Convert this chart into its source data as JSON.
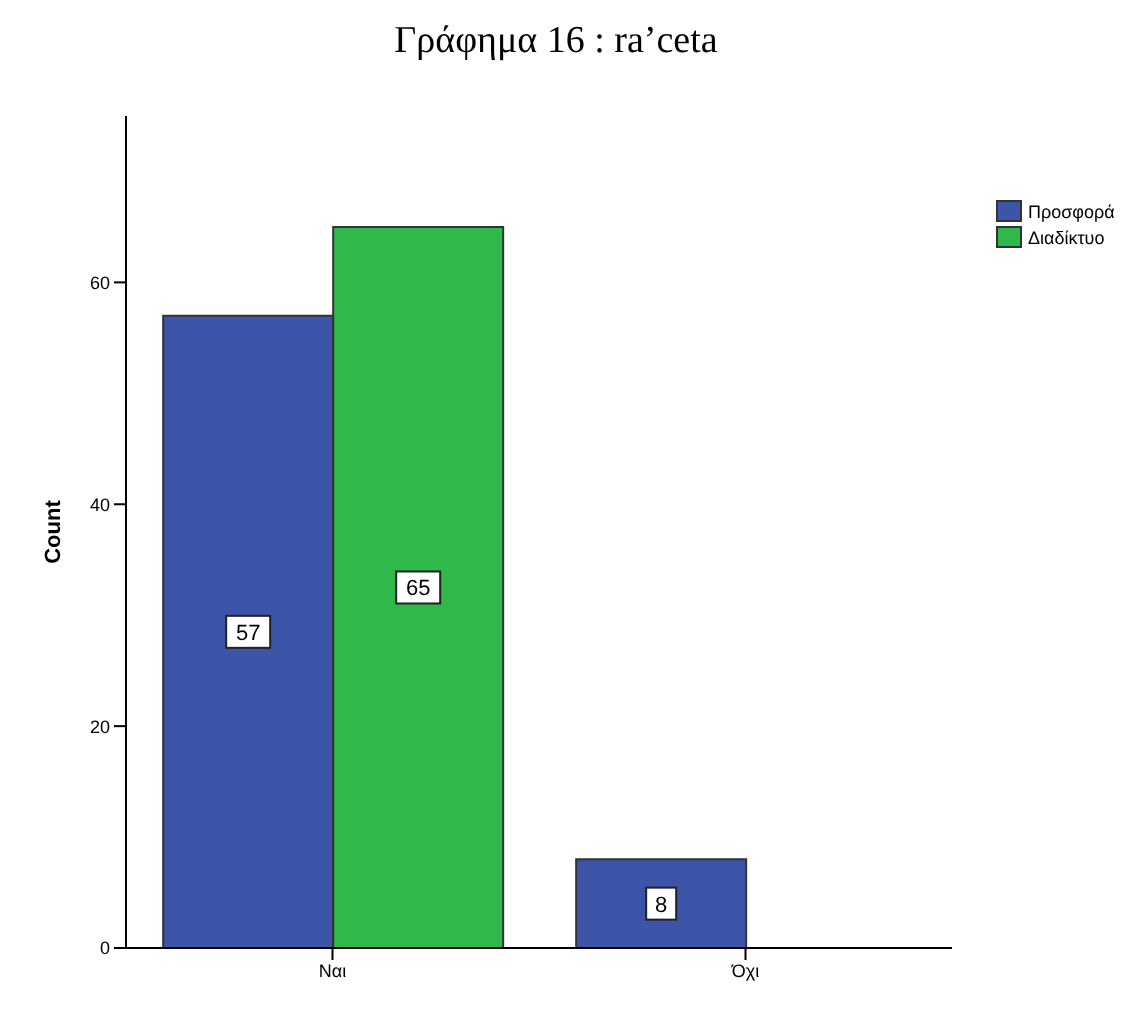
{
  "chart_data": {
    "type": "bar",
    "title": "Γράφημα 16 : ra’ceta",
    "ylabel": "Count",
    "categories": [
      "Ναι",
      "Όχι"
    ],
    "series": [
      {
        "name": "Προσφορά",
        "color": "#3d55a8",
        "values": [
          57,
          8
        ]
      },
      {
        "name": "Διαδίκτυο",
        "color": "#30b84a",
        "values": [
          65,
          null
        ]
      }
    ],
    "ylim": [
      0,
      75
    ],
    "yticks": [
      0,
      20,
      40,
      60
    ],
    "data_labels": true,
    "legend": "top right",
    "grid": false
  }
}
